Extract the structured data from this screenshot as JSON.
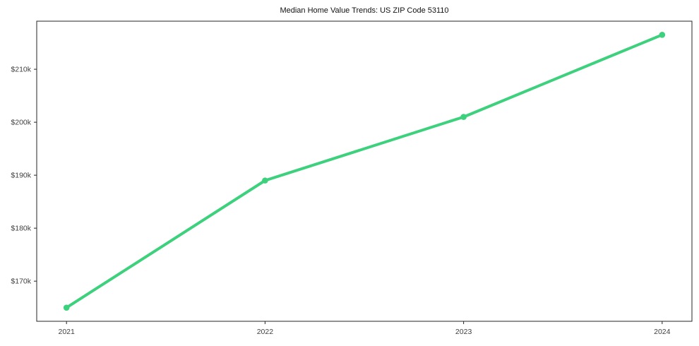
{
  "chart_data": {
    "type": "line",
    "title": "Median Home Value Trends: US ZIP Code 53110",
    "xlabel": "",
    "ylabel": "",
    "x": [
      2021,
      2022,
      2023,
      2024
    ],
    "values": [
      165000,
      189000,
      201000,
      216500
    ],
    "x_ticks": [
      {
        "value": 2021,
        "label": "2021"
      },
      {
        "value": 2022,
        "label": "2022"
      },
      {
        "value": 2023,
        "label": "2023"
      },
      {
        "value": 2024,
        "label": "2024"
      }
    ],
    "y_ticks": [
      {
        "value": 170000,
        "label": "$170k"
      },
      {
        "value": 180000,
        "label": "$180k"
      },
      {
        "value": 190000,
        "label": "$190k"
      },
      {
        "value": 200000,
        "label": "$200k"
      },
      {
        "value": 210000,
        "label": "$210k"
      }
    ],
    "xlim": [
      2020.85,
      2024.15
    ],
    "ylim": [
      162425,
      219075
    ],
    "grid": false,
    "legend": "none",
    "colors": {
      "line": "#3dd17d",
      "marker": "#3dd17d",
      "spine": "#262626",
      "tick": "#262626",
      "tick_label": "#3f3f3f",
      "title": "#111111",
      "background": "#ffffff"
    }
  }
}
